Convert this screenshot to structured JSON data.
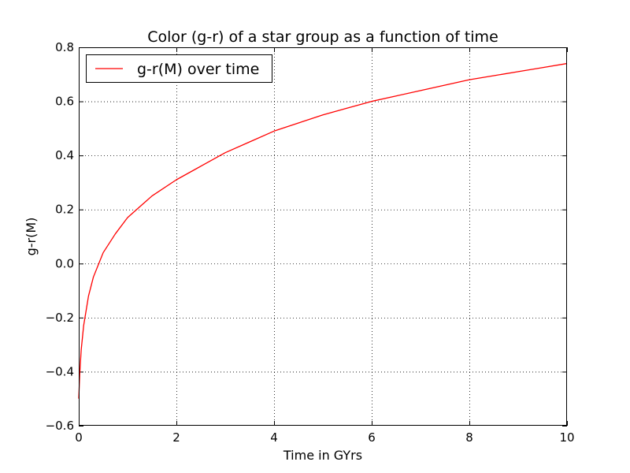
{
  "chart_data": {
    "type": "line",
    "title": "Color (g-r) of a star group as a function of time",
    "xlabel": "Time in GYrs",
    "ylabel": "g-r(M)",
    "xlim": [
      0,
      10
    ],
    "ylim": [
      -0.6,
      0.8
    ],
    "xticks": [
      0,
      2,
      4,
      6,
      8,
      10
    ],
    "xtick_labels": [
      "0",
      "2",
      "4",
      "6",
      "8",
      "10"
    ],
    "yticks": [
      -0.6,
      -0.4,
      -0.2,
      0.0,
      0.2,
      0.4,
      0.6,
      0.8
    ],
    "ytick_labels": [
      "−0.6",
      "−0.4",
      "−0.2",
      "0.0",
      "0.2",
      "0.4",
      "0.6",
      "0.8"
    ],
    "grid": true,
    "legend_position": "top-left",
    "series": [
      {
        "name": "g-r(M) over time",
        "color": "#ff0000",
        "x": [
          0.0,
          0.02,
          0.05,
          0.1,
          0.2,
          0.3,
          0.5,
          0.75,
          1.0,
          1.25,
          1.5,
          2.0,
          2.5,
          3.0,
          3.5,
          4.0,
          4.5,
          5.0,
          5.5,
          6.0,
          6.5,
          7.0,
          7.5,
          8.0,
          8.5,
          9.0,
          9.5,
          10.0
        ],
        "y": [
          -0.5,
          -0.41,
          -0.32,
          -0.23,
          -0.12,
          -0.05,
          0.04,
          0.11,
          0.17,
          0.21,
          0.25,
          0.31,
          0.36,
          0.41,
          0.45,
          0.49,
          0.52,
          0.55,
          0.575,
          0.6,
          0.62,
          0.64,
          0.66,
          0.68,
          0.695,
          0.71,
          0.725,
          0.74
        ]
      }
    ]
  }
}
